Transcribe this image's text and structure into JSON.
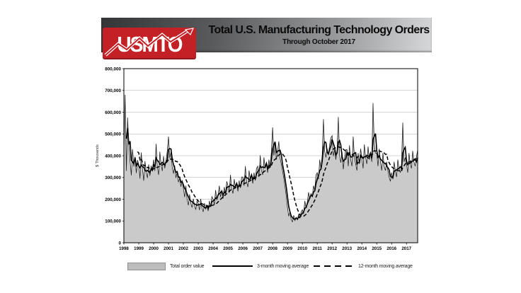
{
  "header": {
    "logo_text": "USMTO",
    "title": "Total U.S. Manufacturing Technology Orders",
    "subtitle": "Through October 2017"
  },
  "colors": {
    "logo_red": "#c42127",
    "logo_red_dark": "#8e1a1f",
    "banner_dark": "#343537",
    "banner_light": "#d7d8da",
    "area_fill": "#cacaca",
    "monthly_outline": "#1a1a1a",
    "ma_line": "#000000",
    "grid_gray": "#a8a8a8",
    "frame_black": "#000000"
  },
  "chart_data": {
    "type": "area",
    "title": "Total U.S. Manufacturing Technology Orders",
    "subtitle": "Through October 2017",
    "ylabel": "$ Thousands",
    "ylim": [
      0,
      800000
    ],
    "ytick_step": 100000,
    "grid": "horizontal gridlines every 100,000; black frame around plot",
    "legend_position": "bottom",
    "x_start": "1998-01",
    "x_end": "2017-10",
    "x_year_labels": [
      "1998",
      "1999",
      "2000",
      "2001",
      "2002",
      "2003",
      "2004",
      "2005",
      "2006",
      "2007",
      "2008",
      "2009",
      "2010",
      "2011",
      "2012",
      "2013",
      "2014",
      "2015",
      "2016",
      "2017"
    ],
    "series": [
      {
        "name": "Total order value",
        "type": "area",
        "unit": "$ thousands",
        "monthly_values": [
          425000,
          680000,
          330000,
          575000,
          450000,
          375000,
          310000,
          430000,
          350000,
          395000,
          320000,
          380000,
          360000,
          295000,
          415000,
          340000,
          285000,
          375000,
          325000,
          298000,
          360000,
          308000,
          352000,
          338000,
          382000,
          330000,
          455000,
          350000,
          312000,
          418000,
          360000,
          330000,
          398000,
          342000,
          378000,
          420000,
          488000,
          390000,
          415000,
          348000,
          318000,
          355000,
          298000,
          328000,
          278000,
          298000,
          258000,
          288000,
          252000,
          210000,
          262000,
          200000,
          172000,
          222000,
          182000,
          162000,
          202000,
          172000,
          152000,
          192000,
          182000,
          150000,
          202000,
          160000,
          142000,
          182000,
          155000,
          170000,
          146000,
          192000,
          165000,
          212000,
          200000,
          175000,
          242000,
          196000,
          220000,
          262000,
          210000,
          242000,
          202000,
          256000,
          226000,
          282000,
          262000,
          230000,
          312000,
          250000,
          226000,
          292000,
          256000,
          272000,
          236000,
          286000,
          252000,
          302000,
          302000,
          262000,
          352000,
          282000,
          256000,
          332000,
          292000,
          312000,
          272000,
          322000,
          286000,
          342000,
          352000,
          302000,
          402000,
          332000,
          312000,
          392000,
          342000,
          362000,
          322000,
          382000,
          346000,
          420000,
          530000,
          400000,
          462000,
          382000,
          420000,
          466000,
          390000,
          362000,
          330000,
          298000,
          258000,
          215000,
          162000,
          122000,
          142000,
          106000,
          96000,
          126000,
          102000,
          116000,
          106000,
          132000,
          112000,
          142000,
          152000,
          132000,
          192000,
          162000,
          186000,
          232000,
          202000,
          226000,
          212000,
          262000,
          242000,
          312000,
          322000,
          292000,
          382000,
          342000,
          402000,
          568000,
          422000,
          392000,
          432000,
          402000,
          452000,
          482000,
          492000,
          398000,
          428000,
          382000,
          428000,
          578000,
          402000,
          368000,
          418000,
          338000,
          388000,
          428000,
          428000,
          352000,
          448000,
          382000,
          352000,
          488000,
          392000,
          362000,
          332000,
          412000,
          362000,
          432000,
          392000,
          342000,
          452000,
          392000,
          362000,
          442000,
          382000,
          412000,
          372000,
          642000,
          452000,
          412000,
          412000,
          352000,
          432000,
          372000,
          332000,
          412000,
          352000,
          332000,
          372000,
          332000,
          302000,
          282000,
          322000,
          292000,
          372000,
          332000,
          302000,
          382000,
          342000,
          322000,
          362000,
          552000,
          372000,
          392000,
          362000,
          322000,
          412000,
          362000,
          342000,
          422000,
          372000,
          352000,
          392000,
          428000
        ]
      },
      {
        "name": "3-month moving average",
        "type": "line-solid",
        "derived_from": "Total order value",
        "window": 3
      },
      {
        "name": "12-month moving average",
        "type": "line-dashed",
        "derived_from": "Total order value",
        "window": 12
      }
    ]
  },
  "legend": {
    "items": [
      {
        "label": "Total order value",
        "swatch": "gray-area"
      },
      {
        "label": "3-month moving average",
        "swatch": "solid-line"
      },
      {
        "label": "12-month moving average",
        "swatch": "dashed-line"
      }
    ]
  }
}
